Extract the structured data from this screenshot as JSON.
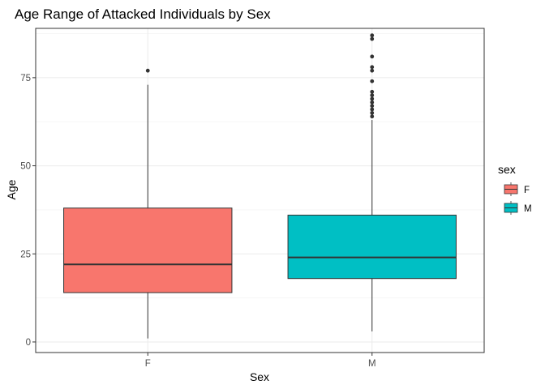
{
  "chart_data": {
    "type": "boxplot",
    "title": "Age Range of Attacked Individuals by Sex",
    "xlabel": "Sex",
    "ylabel": "Age",
    "categories": [
      "F",
      "M"
    ],
    "y_ticks": [
      0,
      25,
      50,
      75
    ],
    "ylim": [
      -3,
      89
    ],
    "grid": true,
    "legend": {
      "title": "sex",
      "position": "right",
      "entries": [
        "F",
        "M"
      ]
    },
    "colors": {
      "F": "#F8766D",
      "M": "#00BFC4"
    },
    "boxes": [
      {
        "category": "F",
        "whisker_low": 1,
        "q1": 14,
        "median": 22,
        "q3": 38,
        "whisker_high": 73,
        "outliers": [
          77
        ]
      },
      {
        "category": "M",
        "whisker_low": 3,
        "q1": 18,
        "median": 24,
        "q3": 36,
        "whisker_high": 63,
        "outliers": [
          64,
          65,
          66,
          67,
          68,
          69,
          70,
          71,
          74,
          77,
          78,
          81,
          86,
          87
        ]
      }
    ]
  }
}
